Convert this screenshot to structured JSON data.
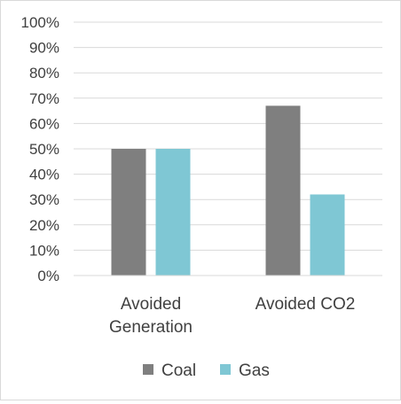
{
  "chart_data": {
    "type": "bar",
    "categories": [
      [
        "Avoided",
        "Generation"
      ],
      [
        "Avoided CO2"
      ]
    ],
    "series": [
      {
        "name": "Coal",
        "color": "#7f7f7f",
        "values": [
          50,
          67
        ]
      },
      {
        "name": "Gas",
        "color": "#7fc7d4",
        "values": [
          50,
          32
        ]
      }
    ],
    "ylim": [
      0,
      100
    ],
    "y_ticks": [
      "0%",
      "10%",
      "20%",
      "30%",
      "40%",
      "50%",
      "60%",
      "70%",
      "80%",
      "90%",
      "100%"
    ],
    "y_unit": "percent",
    "grid": true,
    "legend_position": "bottom"
  }
}
